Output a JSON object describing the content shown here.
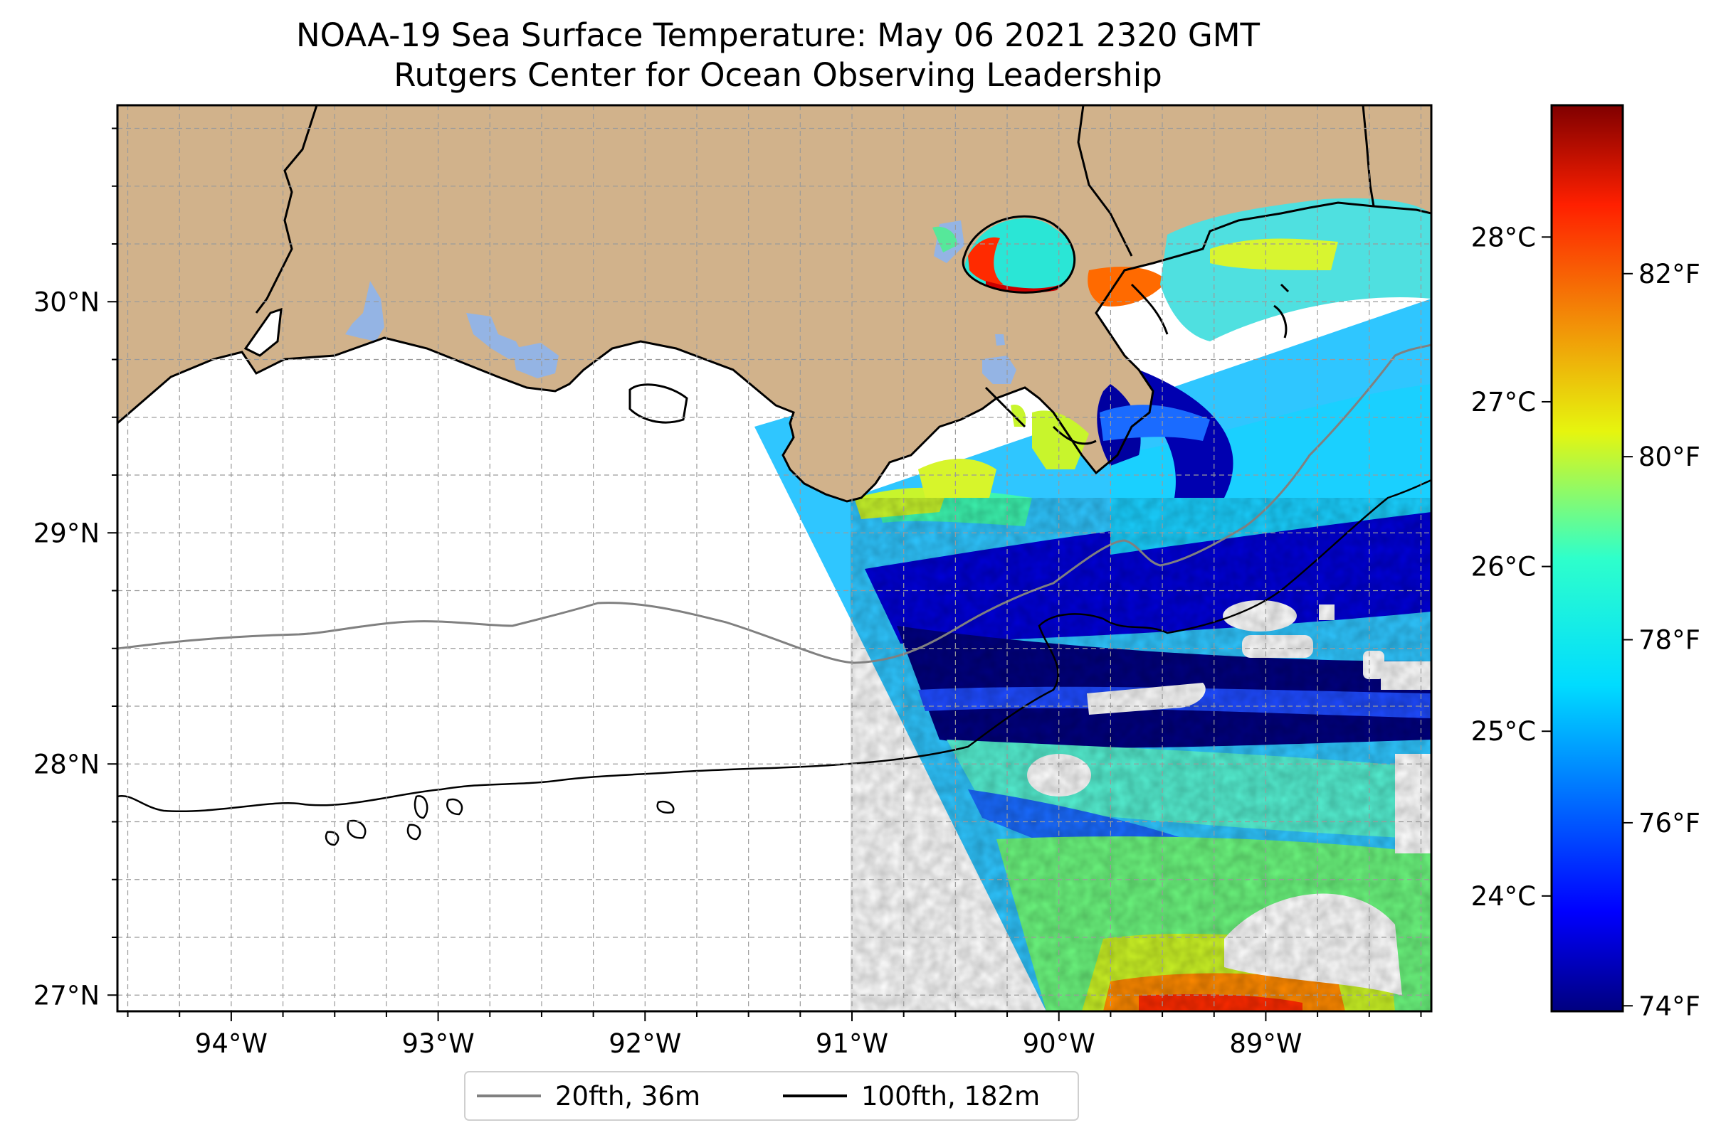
{
  "header": {
    "title": "NOAA-19 Sea Surface Temperature: May 06 2021 2320 GMT",
    "subtitle": "Rutgers Center for Ocean Observing Leadership"
  },
  "map": {
    "lon_range": [
      -94.55,
      -88.2
    ],
    "lat_range": [
      26.93,
      30.85
    ],
    "lon_ticks": [
      {
        "value": -94,
        "label": "94°W"
      },
      {
        "value": -93,
        "label": "93°W"
      },
      {
        "value": -92,
        "label": "92°W"
      },
      {
        "value": -91,
        "label": "91°W"
      },
      {
        "value": -90,
        "label": "90°W"
      },
      {
        "value": -89,
        "label": "89°W"
      }
    ],
    "lat_ticks": [
      {
        "value": 30,
        "label": "30°N"
      },
      {
        "value": 29,
        "label": "29°N"
      },
      {
        "value": 28,
        "label": "28°N"
      },
      {
        "value": 27,
        "label": "27°N"
      }
    ],
    "gridlines": "dashed, every 0.25°",
    "land_color": "#d1b28b",
    "inland_water_color": "#94b4e4"
  },
  "colorbar": {
    "colormap": "jet",
    "celsius_range": [
      23.3,
      28.8
    ],
    "celsius_ticks": [
      {
        "value": 28,
        "label": "28°C"
      },
      {
        "value": 27,
        "label": "27°C"
      },
      {
        "value": 26,
        "label": "26°C"
      },
      {
        "value": 25,
        "label": "25°C"
      },
      {
        "value": 24,
        "label": "24°C"
      }
    ],
    "fahrenheit_ticks": [
      {
        "value": 82,
        "label": "82°F"
      },
      {
        "value": 80,
        "label": "80°F"
      },
      {
        "value": 78,
        "label": "78°F"
      },
      {
        "value": 76,
        "label": "76°F"
      },
      {
        "value": 74,
        "label": "74°F"
      }
    ]
  },
  "legend": {
    "items": [
      {
        "label": "20fth, 36m",
        "color": "#808080"
      },
      {
        "label": "100fth, 182m",
        "color": "#000000"
      }
    ]
  }
}
